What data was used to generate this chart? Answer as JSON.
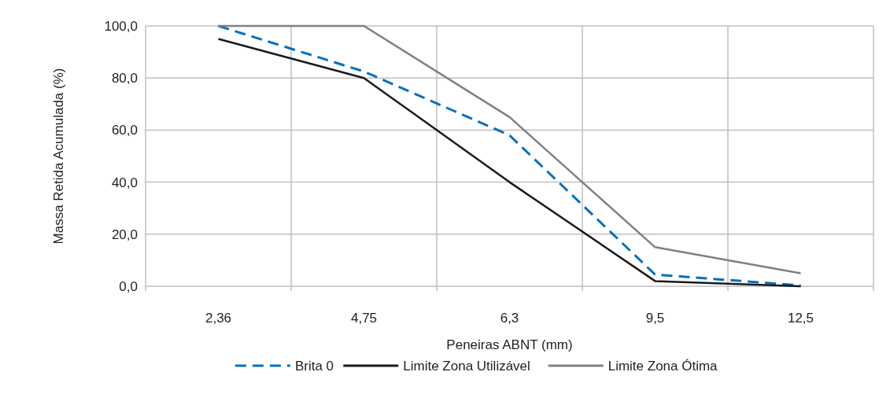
{
  "chart_data": {
    "type": "line",
    "xlabel": "Peneiras ABNT (mm)",
    "ylabel": "Massa Retida Acumulada (%)",
    "categories": [
      "2,36",
      "4,75",
      "6,3",
      "9,5",
      "12,5"
    ],
    "series": [
      {
        "name": "Brita 0",
        "color": "#0070c0",
        "line_style": "dashed",
        "values": [
          100,
          82.5,
          58,
          4.5,
          0.3
        ]
      },
      {
        "name": "Limite Zona Utilizável",
        "color": "#1a1a1a",
        "line_style": "solid",
        "values": [
          95,
          80,
          40,
          2,
          0
        ]
      },
      {
        "name": "Limite Zona Ótima",
        "color": "#808080",
        "line_style": "solid",
        "values": [
          100,
          100,
          65,
          15,
          5
        ]
      }
    ],
    "ylim": [
      0,
      100
    ],
    "yticks": [
      {
        "value": 0,
        "label": "0,0"
      },
      {
        "value": 20,
        "label": "20,0"
      },
      {
        "value": 40,
        "label": "40,0"
      },
      {
        "value": 60,
        "label": "60,0"
      },
      {
        "value": 80,
        "label": "80,0"
      },
      {
        "value": 100,
        "label": "100,0"
      }
    ],
    "grid": true,
    "legend": "bottom",
    "marker": "none"
  }
}
